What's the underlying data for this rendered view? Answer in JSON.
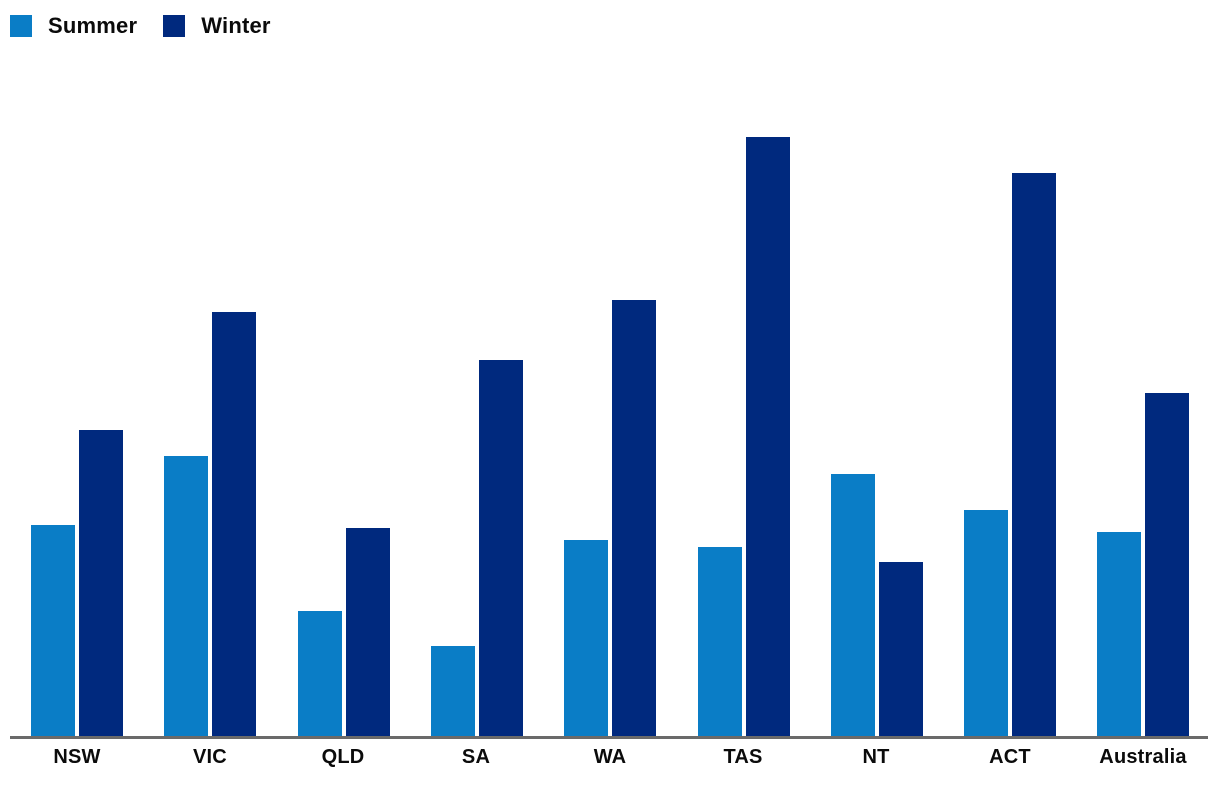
{
  "chart_data": {
    "type": "bar",
    "title": "",
    "xlabel": "",
    "ylabel": "",
    "categories": [
      "NSW",
      "VIC",
      "QLD",
      "SA",
      "WA",
      "TAS",
      "NT",
      "ACT",
      "Australia"
    ],
    "series": [
      {
        "name": "Summer",
        "color": "#0a7dc6",
        "values": [
          35.3,
          46.7,
          20.8,
          15.0,
          32.8,
          31.5,
          43.8,
          37.8,
          34.0
        ]
      },
      {
        "name": "Winter",
        "color": "#00297e",
        "values": [
          51.0,
          70.7,
          34.8,
          62.7,
          72.8,
          100.0,
          29.0,
          94.0,
          57.2
        ]
      }
    ],
    "ylim": [
      0,
      108
    ],
    "grid": false,
    "y_axis_shown": false,
    "legend_position": "top-left",
    "axis_line_color": "#6a6a6a",
    "text_color": "#0b0b0b",
    "background_color": "#ffffff"
  }
}
